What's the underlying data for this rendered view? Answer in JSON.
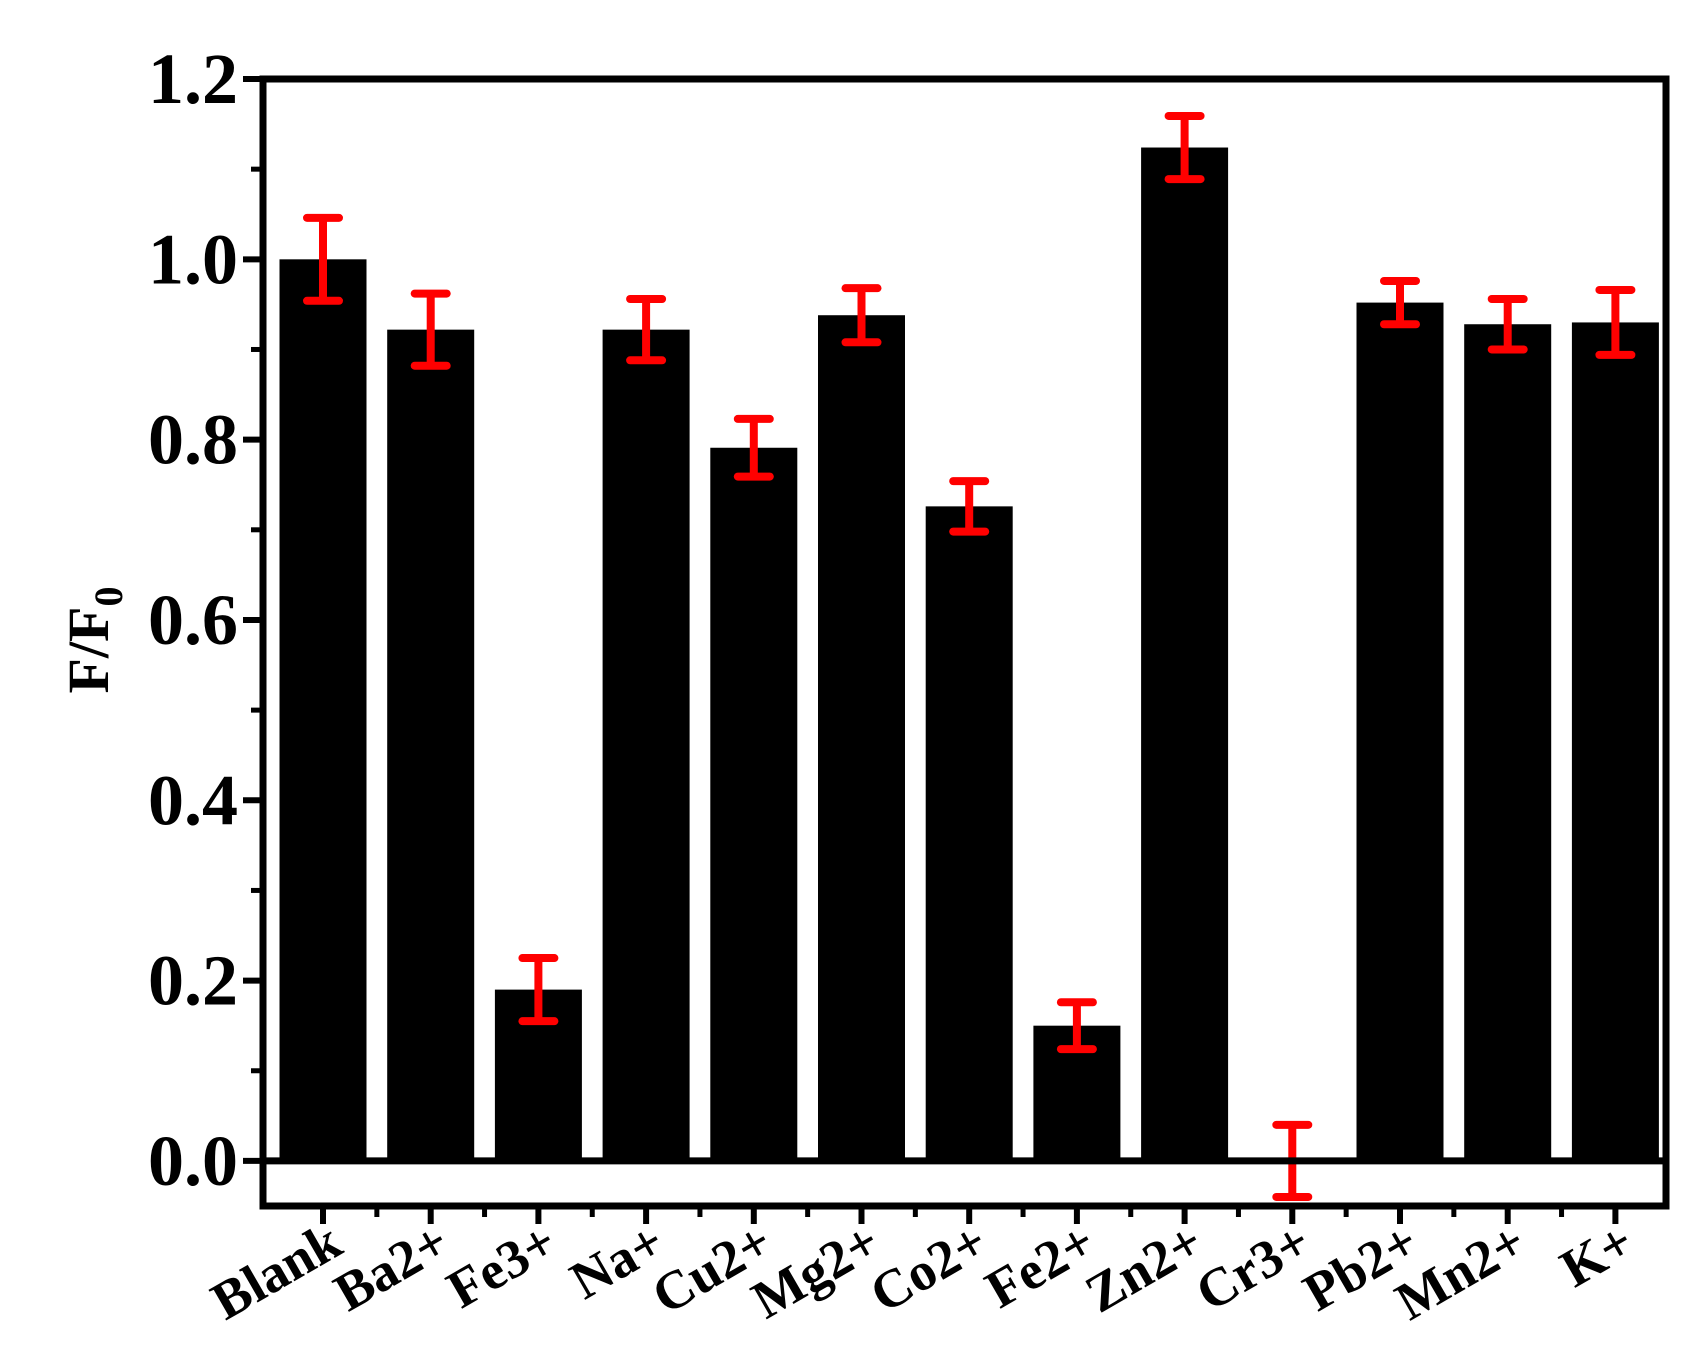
{
  "chart_data": {
    "type": "bar",
    "ylabel": "F/F",
    "ylabel_subscript": "0",
    "categories": [
      "Blank",
      "Ba2+",
      "Fe3+",
      "Na+",
      "Cu2+",
      "Mg2+",
      "Co2+",
      "Fe2+",
      "Zn2+",
      "Cr3+",
      "Pb2+",
      "Mn2+",
      "K+"
    ],
    "values": [
      1.0,
      0.922,
      0.19,
      0.922,
      0.791,
      0.938,
      0.726,
      0.15,
      1.124,
      0.0,
      0.952,
      0.928,
      0.93
    ],
    "errors": [
      0.046,
      0.04,
      0.035,
      0.034,
      0.032,
      0.03,
      0.028,
      0.026,
      0.035,
      0.04,
      0.024,
      0.028,
      0.036
    ],
    "ylim": [
      -0.05,
      1.2
    ],
    "yticks": [
      "0.0",
      "0.2",
      "0.4",
      "0.6",
      "0.8",
      "1.0",
      "1.2"
    ],
    "bar_color": "#000000",
    "error_color": "#ff0000",
    "grid": false,
    "legend": "none"
  }
}
